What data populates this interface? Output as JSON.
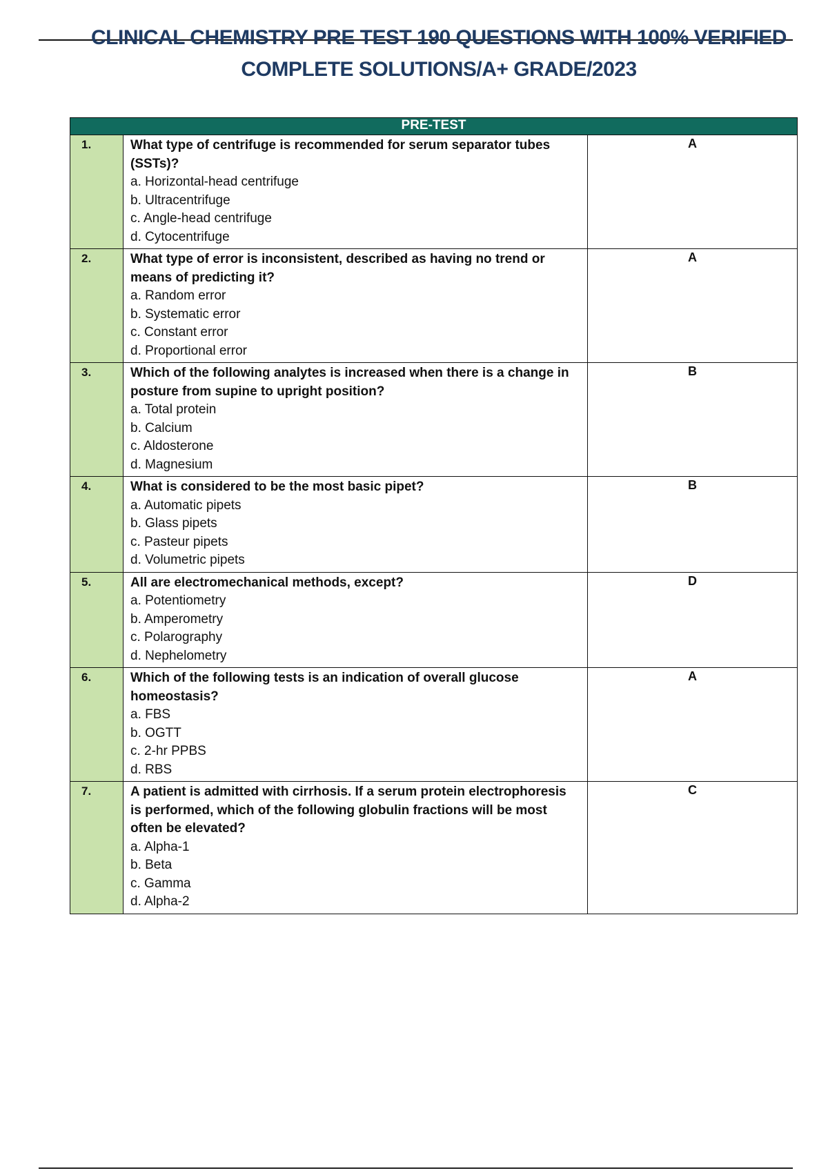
{
  "document": {
    "title_line1": "CLINICAL CHEMISTRY PRE TEST 190 QUESTIONS WITH 100% VERIFIED",
    "title_line2": "COMPLETE SOLUTIONS/A+ GRADE/2023",
    "table_header": "PRE-TEST",
    "questions": [
      {
        "number": "1.",
        "stem": "What type of centrifuge is recommended for serum separator tubes (SSTs)?",
        "options": [
          "a. Horizontal-head centrifuge",
          "b. Ultracentrifuge",
          "c. Angle-head centrifuge",
          "d. Cytocentrifuge"
        ],
        "answer": "A"
      },
      {
        "number": "2.",
        "stem": "What type of error is inconsistent, described as having no trend or means of predicting it?",
        "options": [
          "a. Random error",
          "b. Systematic error",
          "c. Constant error",
          "d. Proportional error"
        ],
        "answer": "A"
      },
      {
        "number": "3.",
        "stem": "Which of the following analytes is increased when there is a change in posture from supine to upright position?",
        "options": [
          "a. Total protein",
          "b. Calcium",
          "c. Aldosterone",
          "d. Magnesium"
        ],
        "answer": "B"
      },
      {
        "number": "4.",
        "stem": "What is considered to be the most basic pipet?",
        "options": [
          "a. Automatic pipets",
          "b. Glass pipets",
          "c. Pasteur pipets",
          "d. Volumetric pipets"
        ],
        "answer": "B"
      },
      {
        "number": "5.",
        "stem": "All are electromechanical methods, except?",
        "options": [
          "a. Potentiometry",
          "b. Amperometry",
          "c. Polarography",
          "d. Nephelometry"
        ],
        "answer": "D"
      },
      {
        "number": "6.",
        "stem": "Which of the following tests is an indication of overall glucose homeostasis?",
        "options": [
          "a. FBS",
          "b. OGTT",
          "c. 2-hr PPBS",
          "d. RBS"
        ],
        "answer": "A"
      },
      {
        "number": "7.",
        "stem": "A patient is admitted with cirrhosis. If a serum protein electrophoresis is performed, which of the following globulin fractions will be most often be elevated?",
        "options": [
          "a. Alpha-1",
          "b. Beta",
          "c. Gamma",
          "d. Alpha-2"
        ],
        "answer": "C"
      }
    ]
  },
  "colors": {
    "header_bg": "#116b5e",
    "number_col_bg": "#c9e2ac",
    "title": "#1f3b63"
  }
}
